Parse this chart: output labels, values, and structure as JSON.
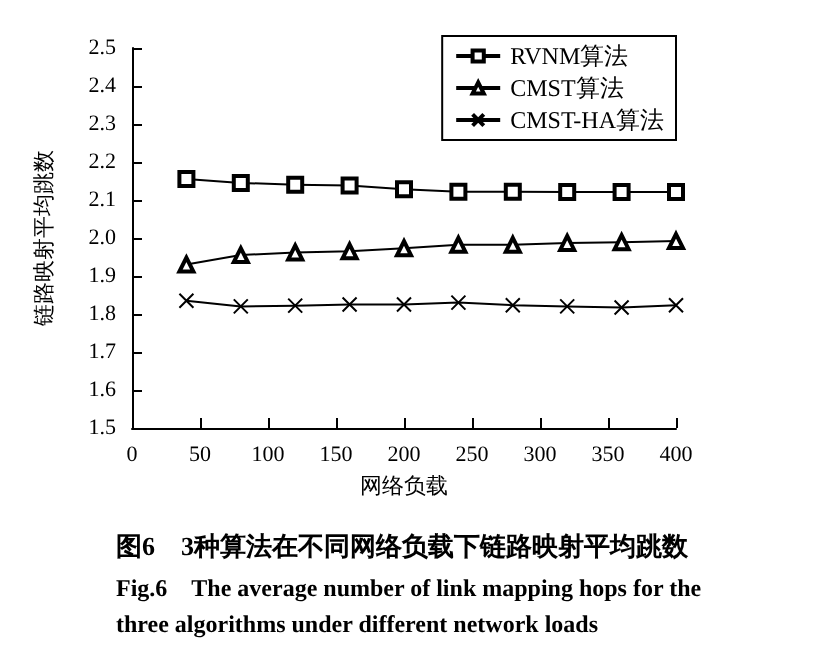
{
  "chart_data": {
    "type": "line",
    "xlabel": "网络负载",
    "ylabel": "链路映射平均跳数",
    "x": [
      40,
      80,
      120,
      160,
      200,
      240,
      280,
      320,
      360,
      400
    ],
    "series": [
      {
        "name": "RVNM算法",
        "color": "#000000",
        "marker": "square",
        "values": [
          2.155,
          2.145,
          2.14,
          2.138,
          2.128,
          2.122,
          2.122,
          2.121,
          2.121,
          2.121
        ]
      },
      {
        "name": "CMST算法",
        "color": "#000000",
        "marker": "triangle",
        "values": [
          1.93,
          1.955,
          1.962,
          1.965,
          1.973,
          1.982,
          1.982,
          1.987,
          1.989,
          1.992
        ]
      },
      {
        "name": "CMST-HA算法",
        "color": "#000000",
        "marker": "cross",
        "values": [
          1.835,
          1.82,
          1.822,
          1.825,
          1.825,
          1.83,
          1.823,
          1.82,
          1.817,
          1.823
        ]
      }
    ],
    "xlim": [
      0,
      400
    ],
    "xticks": [
      0,
      50,
      100,
      150,
      200,
      250,
      300,
      350,
      400
    ],
    "ylim": [
      1.5,
      2.5
    ],
    "yticks": [
      1.5,
      1.6,
      1.7,
      1.8,
      1.9,
      {
        "value": 2,
        "label": "2.0"
      },
      2.1,
      2.2,
      2.3,
      2.4,
      2.5
    ],
    "grid": false,
    "legend": "top right",
    "line_style": "solid",
    "annotations": [
      "图6　3种算法在不同网络负载下链路映射平均跳数",
      "Fig.6　The average number of link mapping hops for the three algorithms under different network loads"
    ]
  }
}
